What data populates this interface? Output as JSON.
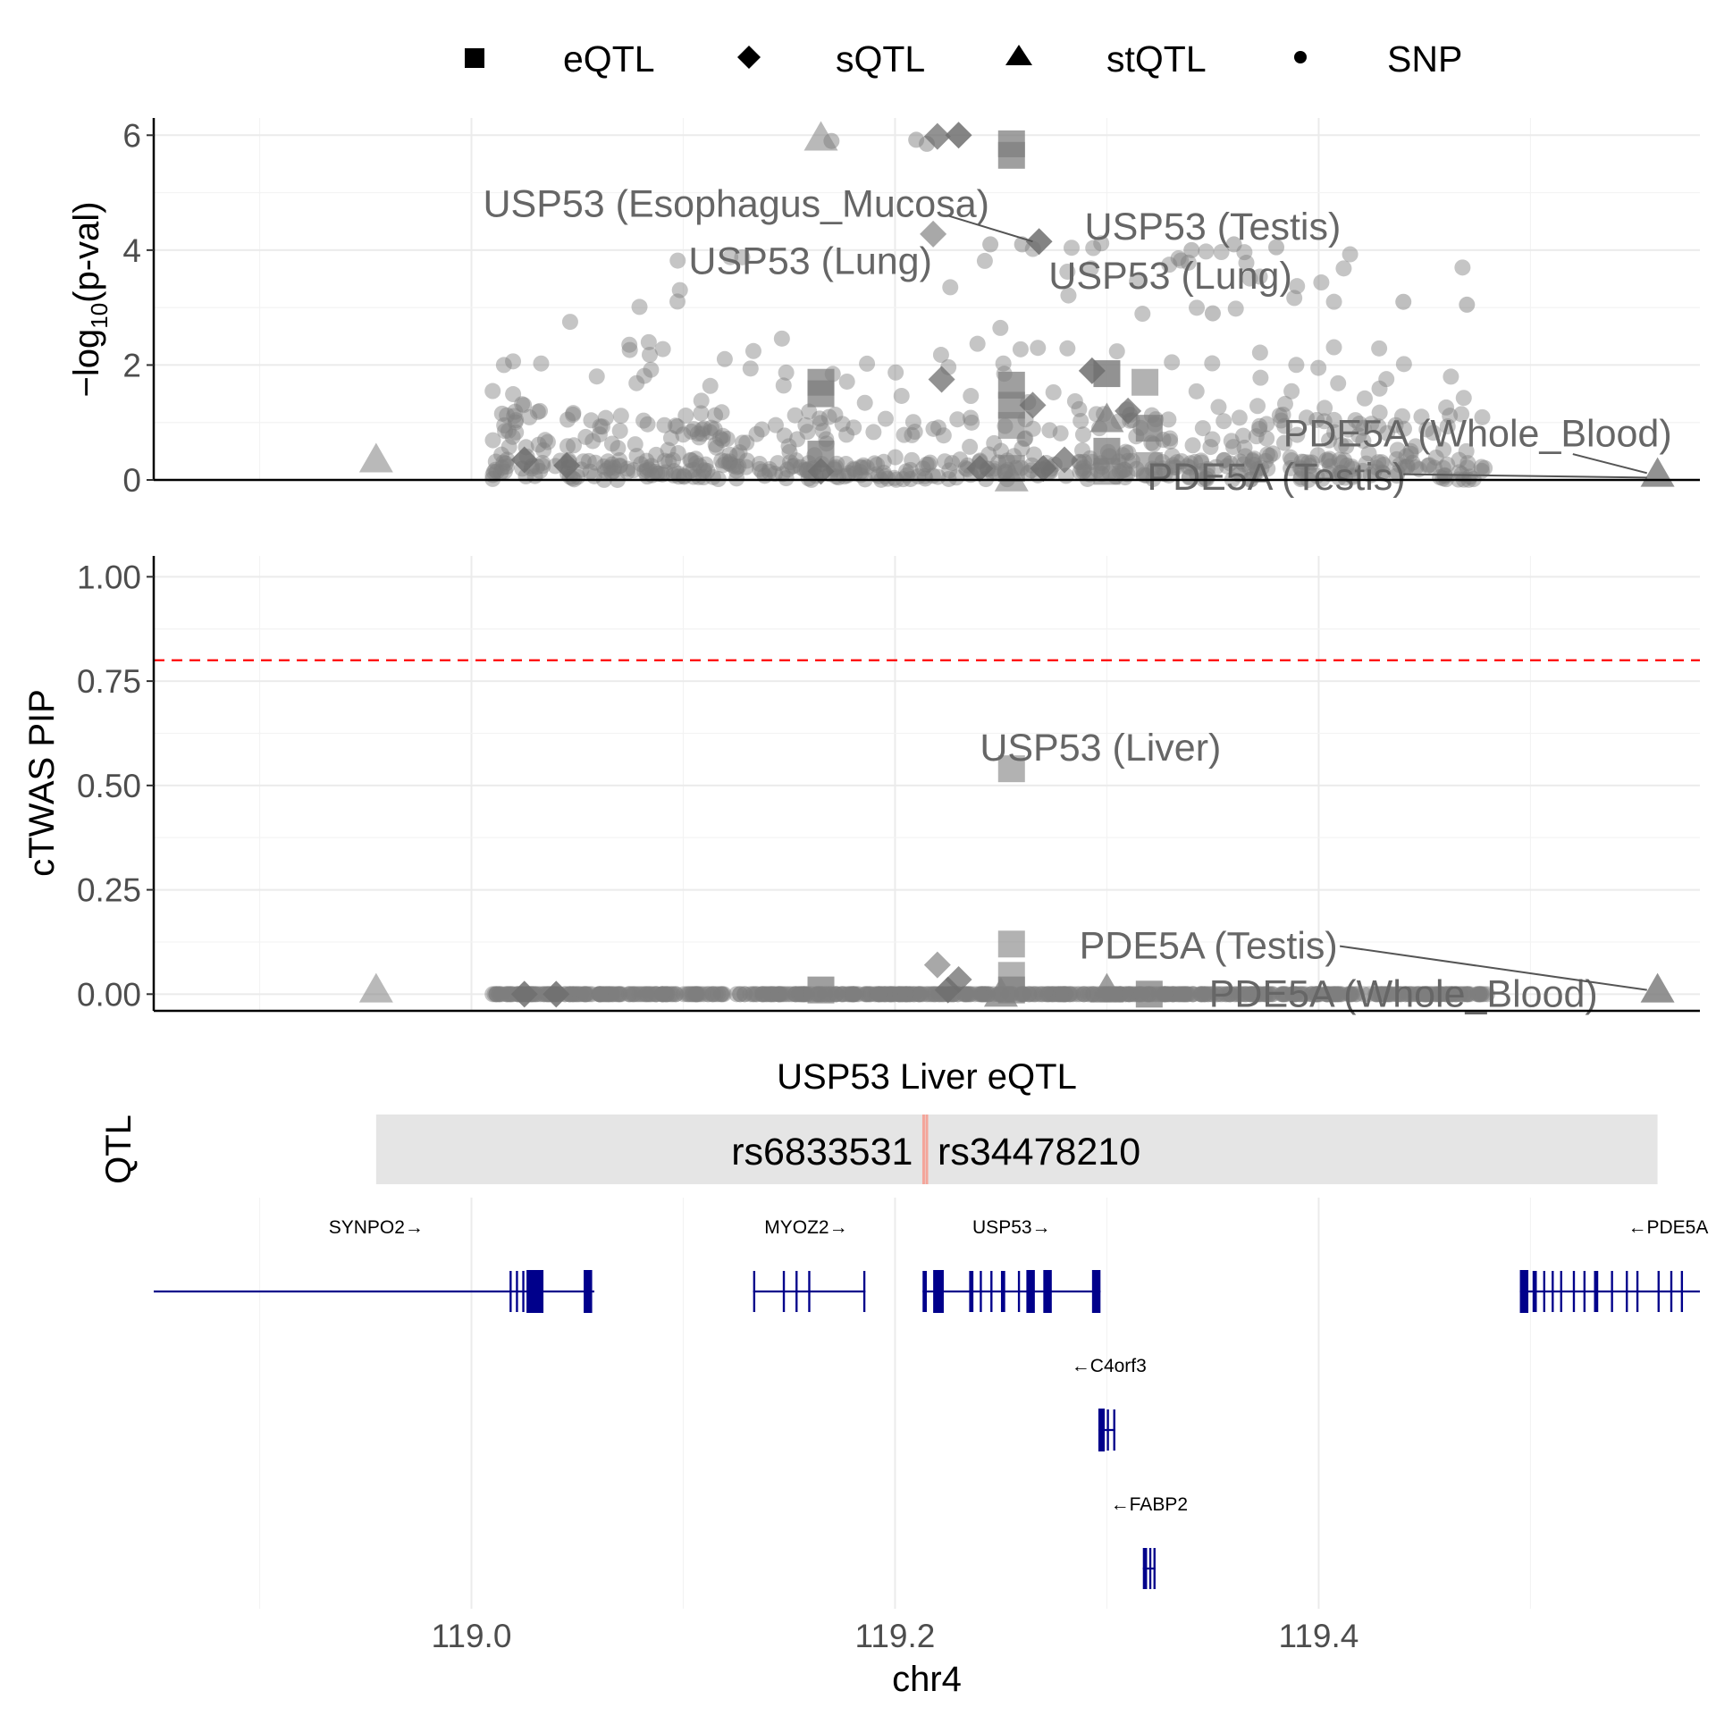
{
  "chart_data": {
    "type": "scatter",
    "legend": [
      {
        "name": "eQTL",
        "shape": "square"
      },
      {
        "name": "sQTL",
        "shape": "diamond"
      },
      {
        "name": "stQTL",
        "shape": "triangle"
      },
      {
        "name": "SNP",
        "shape": "circle"
      }
    ],
    "x": {
      "label": "chr4",
      "ticks": [
        "119.0",
        "119.2",
        "119.4"
      ],
      "tick_values": [
        119.0,
        119.2,
        119.4
      ],
      "range": [
        118.85,
        119.58
      ]
    },
    "panels": [
      {
        "id": "pval",
        "ylabel": "−log10(p-val)",
        "ylabel_main": "−log",
        "ylabel_sub": "10",
        "ylabel_rest": "(p-val)",
        "ylim": [
          0,
          6.3
        ],
        "yticks": [
          "0",
          "2",
          "4",
          "6"
        ],
        "ytick_values": [
          0,
          2,
          4,
          6
        ],
        "genes": [
          {
            "x": 119.165,
            "y": 5.95,
            "shape": "triangle",
            "alpha": 0.55
          },
          {
            "x": 118.955,
            "y": 0.35,
            "shape": "triangle",
            "alpha": 0.55
          },
          {
            "x": 119.22,
            "y": 5.98,
            "shape": "diamond",
            "alpha": 0.75
          },
          {
            "x": 119.23,
            "y": 6.0,
            "shape": "diamond",
            "alpha": 0.85
          },
          {
            "x": 119.218,
            "y": 4.28,
            "shape": "diamond",
            "alpha": 0.6
          },
          {
            "x": 119.255,
            "y": 5.85,
            "shape": "square",
            "alpha": 0.75
          },
          {
            "x": 119.255,
            "y": 5.65,
            "shape": "square",
            "alpha": 0.75
          },
          {
            "x": 119.268,
            "y": 4.15,
            "shape": "diamond",
            "alpha": 0.85
          },
          {
            "x": 119.165,
            "y": 1.7,
            "shape": "square",
            "alpha": 0.75
          },
          {
            "x": 119.165,
            "y": 1.5,
            "shape": "square",
            "alpha": 0.75
          },
          {
            "x": 119.165,
            "y": 0.45,
            "shape": "square",
            "alpha": 0.75
          },
          {
            "x": 119.165,
            "y": 0.15,
            "shape": "diamond",
            "alpha": 0.85
          },
          {
            "x": 119.222,
            "y": 1.75,
            "shape": "diamond",
            "alpha": 0.75
          },
          {
            "x": 119.255,
            "y": 1.65,
            "shape": "square",
            "alpha": 0.75
          },
          {
            "x": 119.255,
            "y": 1.3,
            "shape": "square",
            "alpha": 0.75
          },
          {
            "x": 119.255,
            "y": 0.95,
            "shape": "square",
            "alpha": 0.6
          },
          {
            "x": 119.255,
            "y": 0.2,
            "shape": "square",
            "alpha": 0.6
          },
          {
            "x": 119.255,
            "y": 0.02,
            "shape": "triangle",
            "alpha": 0.6
          },
          {
            "x": 119.3,
            "y": 1.85,
            "shape": "square",
            "alpha": 0.85
          },
          {
            "x": 119.3,
            "y": 1.05,
            "shape": "triangle",
            "alpha": 0.75
          },
          {
            "x": 119.3,
            "y": 0.5,
            "shape": "square",
            "alpha": 0.75
          },
          {
            "x": 119.3,
            "y": 0.15,
            "shape": "square",
            "alpha": 0.6
          },
          {
            "x": 119.318,
            "y": 1.7,
            "shape": "square",
            "alpha": 0.6
          },
          {
            "x": 119.32,
            "y": 0.9,
            "shape": "square",
            "alpha": 0.75
          },
          {
            "x": 119.32,
            "y": 0.25,
            "shape": "square",
            "alpha": 0.6
          },
          {
            "x": 119.293,
            "y": 1.9,
            "shape": "diamond",
            "alpha": 0.85
          },
          {
            "x": 119.31,
            "y": 1.2,
            "shape": "diamond",
            "alpha": 0.75
          },
          {
            "x": 119.265,
            "y": 1.3,
            "shape": "diamond",
            "alpha": 0.75
          },
          {
            "x": 119.24,
            "y": 0.2,
            "shape": "diamond",
            "alpha": 0.85
          },
          {
            "x": 119.27,
            "y": 0.2,
            "shape": "diamond",
            "alpha": 0.85
          },
          {
            "x": 119.025,
            "y": 0.35,
            "shape": "diamond",
            "alpha": 0.85
          },
          {
            "x": 119.045,
            "y": 0.25,
            "shape": "diamond",
            "alpha": 0.85
          },
          {
            "x": 119.28,
            "y": 0.35,
            "shape": "diamond",
            "alpha": 0.75
          },
          {
            "x": 119.56,
            "y": 0.1,
            "shape": "triangle",
            "alpha": 0.85
          }
        ],
        "labels": [
          {
            "text": "USP53 (Esophagus_Mucosa)",
            "x": 119.125,
            "y": 4.8
          },
          {
            "text": "USP53 (Testis)",
            "x": 119.35,
            "y": 4.4
          },
          {
            "text": "USP53 (Lung)",
            "x": 119.16,
            "y": 3.8
          },
          {
            "text": "USP53 (Lung)",
            "x": 119.33,
            "y": 3.55
          },
          {
            "text": "PDE5A (Whole_Blood)",
            "x": 119.475,
            "y": 0.8
          },
          {
            "text": "PDE5A (Testis)",
            "x": 119.38,
            "y": 0.05
          }
        ]
      },
      {
        "id": "pip",
        "ylabel": "cTWAS PIP",
        "ylim": [
          -0.04,
          1.05
        ],
        "yticks": [
          "0.00",
          "0.25",
          "0.50",
          "0.75",
          "1.00"
        ],
        "ytick_values": [
          0,
          0.25,
          0.5,
          0.75,
          1.0
        ],
        "threshold": 0.8,
        "genes": [
          {
            "x": 119.255,
            "y": 0.54,
            "shape": "square",
            "alpha": 0.6
          },
          {
            "x": 119.255,
            "y": 0.12,
            "shape": "square",
            "alpha": 0.6
          },
          {
            "x": 119.255,
            "y": 0.045,
            "shape": "square",
            "alpha": 0.6
          },
          {
            "x": 119.255,
            "y": 0.01,
            "shape": "square",
            "alpha": 0.75
          },
          {
            "x": 119.22,
            "y": 0.07,
            "shape": "diamond",
            "alpha": 0.6
          },
          {
            "x": 119.23,
            "y": 0.035,
            "shape": "diamond",
            "alpha": 0.75
          },
          {
            "x": 119.225,
            "y": 0.01,
            "shape": "diamond",
            "alpha": 0.85
          },
          {
            "x": 118.955,
            "y": 0.01,
            "shape": "triangle",
            "alpha": 0.55
          },
          {
            "x": 119.165,
            "y": 0.01,
            "shape": "square",
            "alpha": 0.75
          },
          {
            "x": 119.3,
            "y": 0.01,
            "shape": "triangle",
            "alpha": 0.75
          },
          {
            "x": 119.32,
            "y": 0.0,
            "shape": "square",
            "alpha": 0.75
          },
          {
            "x": 119.25,
            "y": 0.0,
            "shape": "triangle",
            "alpha": 0.75
          },
          {
            "x": 119.025,
            "y": 0.0,
            "shape": "diamond",
            "alpha": 0.85
          },
          {
            "x": 119.04,
            "y": 0.0,
            "shape": "diamond",
            "alpha": 0.85
          },
          {
            "x": 119.56,
            "y": 0.01,
            "shape": "triangle",
            "alpha": 0.85
          }
        ],
        "labels": [
          {
            "text": "USP53 (Liver)",
            "x": 119.297,
            "y": 0.59
          },
          {
            "text": "PDE5A (Testis)",
            "x": 119.348,
            "y": 0.115
          },
          {
            "text": "PDE5A (Whole_Blood)",
            "x": 119.44,
            "y": 0.0
          }
        ]
      }
    ],
    "qtl_track": {
      "title": "USP53 Liver eQTL",
      "ylabel": "QTL",
      "range": [
        118.955,
        119.56
      ],
      "snps": [
        {
          "label": "rs6833531",
          "x": 119.2135
        },
        {
          "label": "rs34478210",
          "x": 119.215
        }
      ]
    },
    "gene_track": {
      "genes": [
        {
          "name": "SYNPO2",
          "label": "SYNPO2→",
          "strand": "+",
          "start": 118.85,
          "end": 119.058,
          "row": 0,
          "label_x": 118.955,
          "exons": [
            [
              119.018,
              119.019
            ],
            [
              119.021,
              119.022
            ],
            [
              119.024,
              119.025
            ],
            [
              119.026,
              119.034
            ],
            [
              119.053,
              119.057
            ]
          ]
        },
        {
          "name": "MYOZ2",
          "label": "MYOZ2→",
          "strand": "+",
          "start": 119.133,
          "end": 119.186,
          "row": 0,
          "label_x": 119.158,
          "exons": [
            [
              119.133,
              119.134
            ],
            [
              119.147,
              119.148
            ],
            [
              119.153,
              119.154
            ],
            [
              119.159,
              119.16
            ],
            [
              119.185,
              119.186
            ]
          ]
        },
        {
          "name": "USP53",
          "label": "USP53→",
          "strand": "+",
          "start": 119.213,
          "end": 119.297,
          "row": 0,
          "label_x": 119.255,
          "exons": [
            [
              119.213,
              119.215
            ],
            [
              119.218,
              119.223
            ],
            [
              119.235,
              119.237
            ],
            [
              119.24,
              119.241
            ],
            [
              119.245,
              119.246
            ],
            [
              119.25,
              119.252
            ],
            [
              119.258,
              119.259
            ],
            [
              119.262,
              119.266
            ],
            [
              119.27,
              119.274
            ],
            [
              119.293,
              119.297
            ]
          ]
        },
        {
          "name": "PDE5A",
          "label": "←PDE5A",
          "strand": "-",
          "start": 119.495,
          "end": 119.58,
          "row": 0,
          "label_x": 119.565,
          "exons": [
            [
              119.495,
              119.499
            ],
            [
              119.501,
              119.503
            ],
            [
              119.506,
              119.507
            ],
            [
              119.51,
              119.511
            ],
            [
              119.514,
              119.515
            ],
            [
              119.52,
              119.521
            ],
            [
              119.525,
              119.526
            ],
            [
              119.53,
              119.532
            ],
            [
              119.538,
              119.539
            ],
            [
              119.545,
              119.546
            ],
            [
              119.55,
              119.551
            ],
            [
              119.56,
              119.561
            ],
            [
              119.566,
              119.567
            ],
            [
              119.571,
              119.572
            ]
          ]
        },
        {
          "name": "C4orf3",
          "label": "←C4orf3",
          "strand": "-",
          "start": 119.296,
          "end": 119.304,
          "row": 1,
          "label_x": 119.301,
          "exons": [
            [
              119.296,
              119.299
            ],
            [
              119.3,
              119.301
            ],
            [
              119.303,
              119.304
            ]
          ]
        },
        {
          "name": "FABP2",
          "label": "←FABP2",
          "strand": "-",
          "start": 119.317,
          "end": 119.323,
          "row": 2,
          "label_x": 119.32,
          "exons": [
            [
              119.317,
              119.319
            ],
            [
              119.32,
              119.321
            ],
            [
              119.322,
              119.323
            ]
          ]
        }
      ]
    }
  }
}
